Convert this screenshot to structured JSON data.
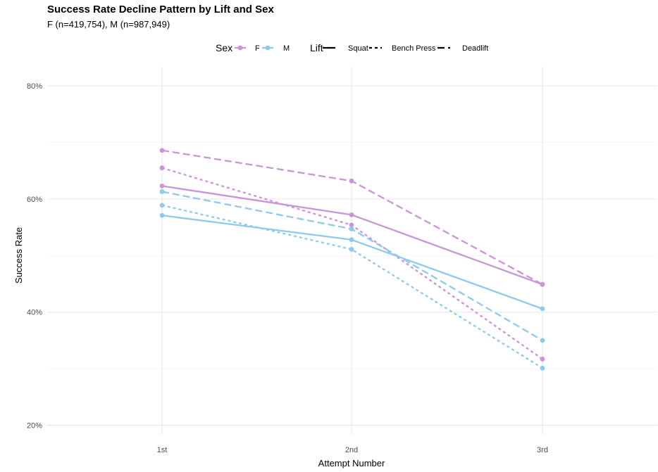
{
  "chart_data": {
    "type": "line",
    "title": "Success Rate Decline Pattern by Lift and Sex",
    "subtitle": "F (n=419,754), M (n=987,949)",
    "xlabel": "Attempt Number",
    "ylabel": "Success Rate",
    "categories": [
      "1st",
      "2nd",
      "3rd"
    ],
    "ylim": [
      18,
      84
    ],
    "yticks": [
      20,
      40,
      60,
      80
    ],
    "ytick_labels": [
      "20%",
      "40%",
      "60%",
      "80%"
    ],
    "grid": true,
    "legend_position": "top",
    "legend": {
      "sex_title": "Sex",
      "sex_items": [
        {
          "label": "F",
          "color": "#c994d8"
        },
        {
          "label": "M",
          "color": "#8ec9ee"
        }
      ],
      "lift_title": "Lift",
      "lift_items": [
        {
          "label": "Squat",
          "dash": "solid"
        },
        {
          "label": "Bench Press",
          "dash": "dotted"
        },
        {
          "label": "Deadlift",
          "dash": "dashed"
        }
      ]
    },
    "series": [
      {
        "sex": "F",
        "lift": "Squat",
        "color": "#c994d8",
        "dash": "solid",
        "values": [
          62.3,
          57.2,
          44.9
        ]
      },
      {
        "sex": "F",
        "lift": "Bench Press",
        "color": "#c994d8",
        "dash": "dotted",
        "values": [
          65.5,
          55.4,
          31.7
        ]
      },
      {
        "sex": "F",
        "lift": "Deadlift",
        "color": "#c994d8",
        "dash": "dashed",
        "values": [
          68.6,
          63.2,
          44.9
        ]
      },
      {
        "sex": "M",
        "lift": "Squat",
        "color": "#8ec9ee",
        "dash": "solid",
        "values": [
          57.1,
          52.8,
          40.6
        ]
      },
      {
        "sex": "M",
        "lift": "Bench Press",
        "color": "#8ec9ee",
        "dash": "dotted",
        "values": [
          58.9,
          51.1,
          30.1
        ]
      },
      {
        "sex": "M",
        "lift": "Deadlift",
        "color": "#8ec9ee",
        "dash": "dashed",
        "values": [
          61.3,
          54.7,
          35.0
        ]
      }
    ]
  }
}
